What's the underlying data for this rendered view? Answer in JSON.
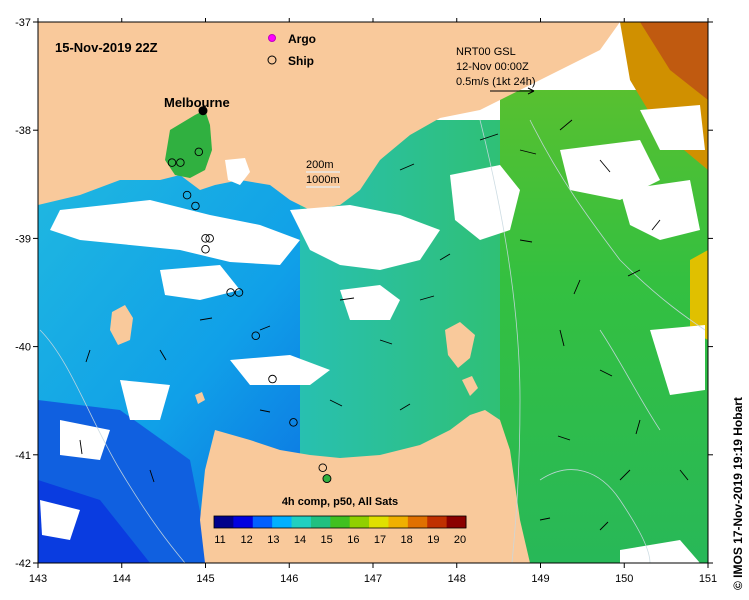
{
  "map": {
    "title": "15-Nov-2019 22Z",
    "legend": {
      "argo_label": "Argo",
      "ship_label": "Ship",
      "argo_color": "#ff00ff"
    },
    "place_label": "Melbourne",
    "depth_labels": [
      "200m",
      "1000m"
    ],
    "current_info": {
      "line1": "NRT00 GSL",
      "line2": "12-Nov 00:00Z",
      "line3": "0.5m/s (1kt 24h)"
    },
    "colorbar": {
      "title": "4h comp, p50, All Sats",
      "min": 11,
      "max": 20,
      "tick_labels": [
        "11",
        "12",
        "13",
        "14",
        "15",
        "16",
        "17",
        "18",
        "19",
        "20"
      ],
      "colors": [
        "#00008b",
        "#0000e0",
        "#0060ff",
        "#00b0ff",
        "#20d0c0",
        "#20c080",
        "#40c020",
        "#90d000",
        "#e0e000",
        "#f0b000",
        "#e07000",
        "#c03000",
        "#8b0000"
      ]
    },
    "credit": "© IMOS 17-Nov-2019 19:19 Hobart",
    "colors": {
      "land": "#f9c99b",
      "cloud": "#ffffff"
    }
  },
  "chart_data": {
    "type": "heatmap",
    "title": "15-Nov-2019 22Z",
    "xlabel": "",
    "ylabel": "",
    "xlim": [
      143,
      151
    ],
    "ylim": [
      -42,
      -37
    ],
    "x_ticks": [
      "143",
      "144",
      "145",
      "146",
      "147",
      "148",
      "149",
      "150",
      "151"
    ],
    "y_ticks": [
      "-37",
      "-38",
      "-39",
      "-40",
      "-41",
      "-42"
    ],
    "colorbar_range": [
      11,
      20
    ],
    "markers": {
      "argo": [
        [
          144.97,
          -37.82
        ]
      ],
      "ship": [
        [
          144.6,
          -38.3
        ],
        [
          144.7,
          -38.3
        ],
        [
          144.92,
          -38.2
        ],
        [
          144.78,
          -38.6
        ],
        [
          144.88,
          -38.7
        ],
        [
          145.0,
          -39.0
        ],
        [
          145.05,
          -39.0
        ],
        [
          145.0,
          -39.1
        ],
        [
          145.3,
          -39.5
        ],
        [
          145.4,
          -39.5
        ],
        [
          145.6,
          -39.9
        ],
        [
          145.8,
          -40.3
        ],
        [
          146.05,
          -40.7
        ],
        [
          146.4,
          -41.12
        ]
      ],
      "ship_filled": [
        [
          146.45,
          -41.22
        ]
      ]
    }
  }
}
